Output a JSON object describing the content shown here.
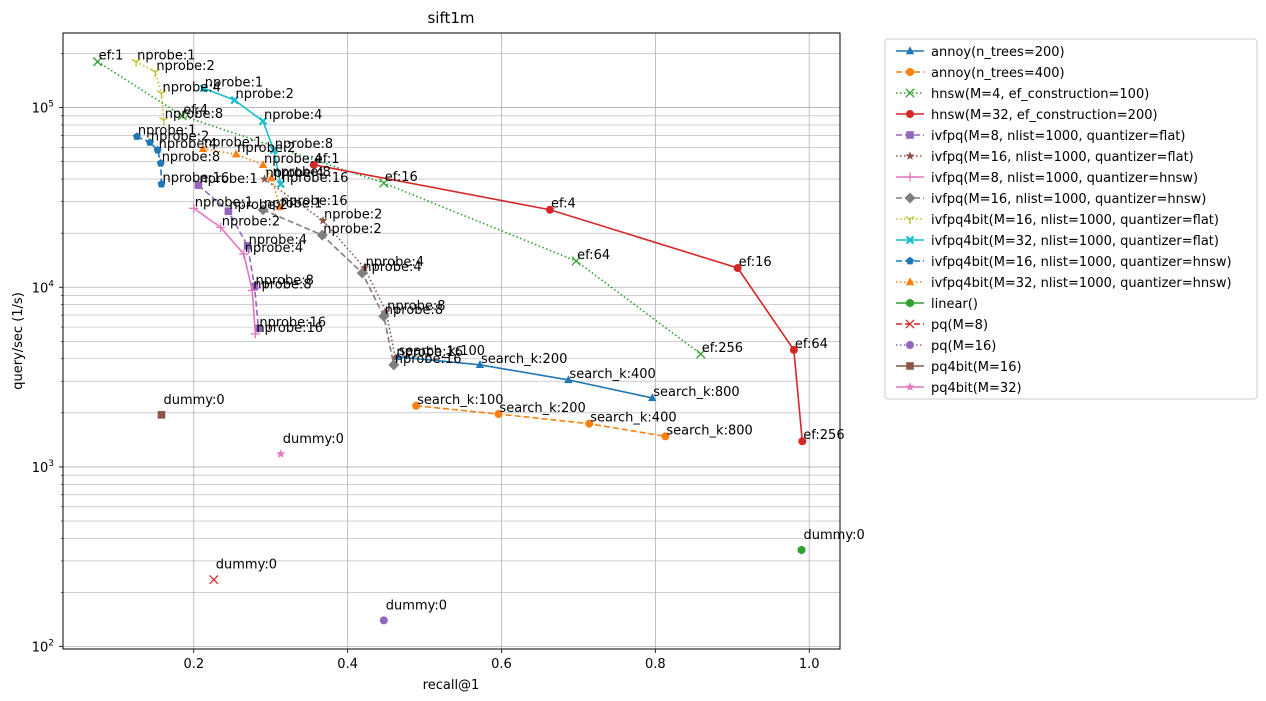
{
  "chart_data": {
    "type": "line",
    "title": "sift1m",
    "xlabel": "recall@1",
    "ylabel": "query/sec (1/s)",
    "xlim": [
      0.03,
      1.04
    ],
    "ylim": [
      97,
      260000
    ],
    "xscale": "linear",
    "yscale": "log",
    "grid": true,
    "legend_position": "outside-right",
    "x_ticks": [
      {
        "value": 0.2,
        "label": "0.2"
      },
      {
        "value": 0.4,
        "label": "0.4"
      },
      {
        "value": 0.6,
        "label": "0.6"
      },
      {
        "value": 0.8,
        "label": "0.8"
      },
      {
        "value": 1.0,
        "label": "1.0"
      }
    ],
    "y_ticks": [
      {
        "value": 100,
        "label": "10",
        "sup": "2"
      },
      {
        "value": 1000,
        "label": "10",
        "sup": "3"
      },
      {
        "value": 10000,
        "label": "10",
        "sup": "4"
      },
      {
        "value": 100000,
        "label": "10",
        "sup": "5"
      }
    ],
    "series": [
      {
        "name": "annoy(n_trees=200)",
        "color": "#1f77b4",
        "dash": "solid",
        "marker": "triangle",
        "points": [
          {
            "x": 0.465,
            "y": 4100,
            "label": "search_k:100"
          },
          {
            "x": 0.572,
            "y": 3700,
            "label": "search_k:200"
          },
          {
            "x": 0.687,
            "y": 3050,
            "label": "search_k:400"
          },
          {
            "x": 0.796,
            "y": 2420,
            "label": "search_k:800"
          }
        ]
      },
      {
        "name": "annoy(n_trees=400)",
        "color": "#ff7f0e",
        "dash": "dashed",
        "marker": "circle",
        "points": [
          {
            "x": 0.489,
            "y": 2190,
            "label": "search_k:100"
          },
          {
            "x": 0.596,
            "y": 1970,
            "label": "search_k:200"
          },
          {
            "x": 0.714,
            "y": 1740,
            "label": "search_k:400"
          },
          {
            "x": 0.813,
            "y": 1480,
            "label": "search_k:800"
          }
        ]
      },
      {
        "name": "hnsw(M=4, ef_construction=100)",
        "color": "#2ca02c",
        "dash": "dotted",
        "marker": "x",
        "points": [
          {
            "x": 0.075,
            "y": 180000,
            "label": "ef:1"
          },
          {
            "x": 0.185,
            "y": 90000,
            "label": "ef:4"
          },
          {
            "x": 0.447,
            "y": 38000,
            "label": "ef:16"
          },
          {
            "x": 0.697,
            "y": 14000,
            "label": "ef:64"
          },
          {
            "x": 0.859,
            "y": 4250,
            "label": "ef:256"
          }
        ]
      },
      {
        "name": "hnsw(M=32, ef_construction=200)",
        "color": "#d62728",
        "dash": "solid",
        "marker": "circle",
        "points": [
          {
            "x": 0.356,
            "y": 48000,
            "label": "ef:1"
          },
          {
            "x": 0.663,
            "y": 27000,
            "label": "ef:4"
          },
          {
            "x": 0.907,
            "y": 12800,
            "label": "ef:16"
          },
          {
            "x": 0.98,
            "y": 4480,
            "label": "ef:64"
          },
          {
            "x": 0.991,
            "y": 1390,
            "label": "ef:256"
          }
        ]
      },
      {
        "name": "ivfpq(M=8, nlist=1000, quantizer=flat)",
        "color": "#9467bd",
        "dash": "dashed",
        "marker": "square",
        "points": [
          {
            "x": 0.206,
            "y": 37000,
            "label": "nprobe:1"
          },
          {
            "x": 0.245,
            "y": 26500,
            "label": "nprobe:2"
          },
          {
            "x": 0.27,
            "y": 17000,
            "label": "nprobe:4"
          },
          {
            "x": 0.279,
            "y": 10100,
            "label": "nprobe:8"
          },
          {
            "x": 0.284,
            "y": 5900,
            "label": "nprobe:16"
          }
        ]
      },
      {
        "name": "ivfpq(M=16, nlist=1000, quantizer=flat)",
        "color": "#8c564b",
        "dash": "dotted",
        "marker": "star",
        "points": [
          {
            "x": 0.292,
            "y": 40000,
            "label": "nprobe:4"
          },
          {
            "x": 0.368,
            "y": 23500,
            "label": "nprobe:2"
          },
          {
            "x": 0.422,
            "y": 12800,
            "label": "nprobe:4"
          },
          {
            "x": 0.45,
            "y": 7300,
            "label": "nprobe:8"
          },
          {
            "x": 0.462,
            "y": 4050,
            "label": "nprobe:16"
          }
        ]
      },
      {
        "name": "ivfpq(M=8, nlist=1000, quantizer=hnsw)",
        "color": "#e377c2",
        "dash": "solid",
        "marker": "plus",
        "points": [
          {
            "x": 0.2,
            "y": 27500,
            "label": "nprobe:1"
          },
          {
            "x": 0.235,
            "y": 21500,
            "label": "nprobe:2"
          },
          {
            "x": 0.265,
            "y": 15300,
            "label": "nprobe:4"
          },
          {
            "x": 0.276,
            "y": 9600,
            "label": "nprobe:8"
          },
          {
            "x": 0.28,
            "y": 5500,
            "label": "nprobe:16"
          }
        ]
      },
      {
        "name": "ivfpq(M=16, nlist=1000, quantizer=hnsw)",
        "color": "#7f7f7f",
        "dash": "dashed",
        "marker": "diamond",
        "points": [
          {
            "x": 0.29,
            "y": 27000,
            "label": "nprobe:1"
          },
          {
            "x": 0.367,
            "y": 19500,
            "label": "nprobe:2"
          },
          {
            "x": 0.419,
            "y": 12000,
            "label": "nprobe:4"
          },
          {
            "x": 0.447,
            "y": 6900,
            "label": "nprobe:8"
          },
          {
            "x": 0.46,
            "y": 3700,
            "label": "nprobe:16"
          }
        ]
      },
      {
        "name": "ivfpq4bit(M=16, nlist=1000, quantizer=flat)",
        "color": "#bcbd22",
        "dash": "dotted",
        "marker": "tri_down",
        "points": [
          {
            "x": 0.125,
            "y": 180000,
            "label": "nprobe:1"
          },
          {
            "x": 0.15,
            "y": 158000,
            "label": "nprobe:2"
          },
          {
            "x": 0.158,
            "y": 120000,
            "label": "nprobe:4"
          },
          {
            "x": 0.161,
            "y": 85000,
            "label": "nprobe:8"
          }
        ]
      },
      {
        "name": "ivfpq4bit(M=32, nlist=1000, quantizer=flat)",
        "color": "#17becf",
        "dash": "solid",
        "marker": "filled_x",
        "points": [
          {
            "x": 0.213,
            "y": 128000,
            "label": "nprobe:1"
          },
          {
            "x": 0.253,
            "y": 110000,
            "label": "nprobe:2"
          },
          {
            "x": 0.29,
            "y": 84000,
            "label": "nprobe:4"
          },
          {
            "x": 0.304,
            "y": 58000,
            "label": "nprobe:8"
          },
          {
            "x": 0.313,
            "y": 37500,
            "label": "nprobe:16"
          }
        ]
      },
      {
        "name": "ivfpq4bit(M=16, nlist=1000, quantizer=hnsw)",
        "color": "#1f77b4",
        "dash": "dashed",
        "marker": "pentagon",
        "points": [
          {
            "x": 0.126,
            "y": 69000,
            "label": "nprobe:1"
          },
          {
            "x": 0.143,
            "y": 64000,
            "label": "nprobe:2"
          },
          {
            "x": 0.153,
            "y": 58000,
            "label": "nprobe:4"
          },
          {
            "x": 0.157,
            "y": 49000,
            "label": "nprobe:8"
          },
          {
            "x": 0.158,
            "y": 37500,
            "label": "nprobe:16"
          }
        ]
      },
      {
        "name": "ivfpq4bit(M=32, nlist=1000, quantizer=hnsw)",
        "color": "#ff7f0e",
        "dash": "dotted",
        "marker": "triangle",
        "points": [
          {
            "x": 0.212,
            "y": 59000,
            "label": "nprobe:1"
          },
          {
            "x": 0.255,
            "y": 55000,
            "label": "nprobe:2"
          },
          {
            "x": 0.29,
            "y": 48000,
            "label": "nprobe:4"
          },
          {
            "x": 0.301,
            "y": 40500,
            "label": "nprobe:8"
          },
          {
            "x": 0.312,
            "y": 28000,
            "label": "nprobe:16"
          }
        ]
      },
      {
        "name": "linear()",
        "color": "#2ca02c",
        "dash": "solid",
        "marker": "hexagon",
        "points": [
          {
            "x": 0.99,
            "y": 345,
            "label": "dummy:0"
          }
        ]
      },
      {
        "name": "pq(M=8)",
        "color": "#d62728",
        "dash": "dashed",
        "marker": "x",
        "points": [
          {
            "x": 0.226,
            "y": 236,
            "label": "dummy:0"
          }
        ]
      },
      {
        "name": "pq(M=16)",
        "color": "#9467bd",
        "dash": "dotted",
        "marker": "circle",
        "points": [
          {
            "x": 0.447,
            "y": 140,
            "label": "dummy:0"
          }
        ]
      },
      {
        "name": "pq4bit(M=16)",
        "color": "#8c564b",
        "dash": "solid",
        "marker": "square",
        "points": [
          {
            "x": 0.158,
            "y": 1950,
            "label": "dummy:0"
          }
        ]
      },
      {
        "name": "pq4bit(M=32)",
        "color": "#e377c2",
        "dash": "solid",
        "marker": "star",
        "points": [
          {
            "x": 0.313,
            "y": 1180,
            "label": "dummy:0"
          }
        ]
      }
    ]
  }
}
